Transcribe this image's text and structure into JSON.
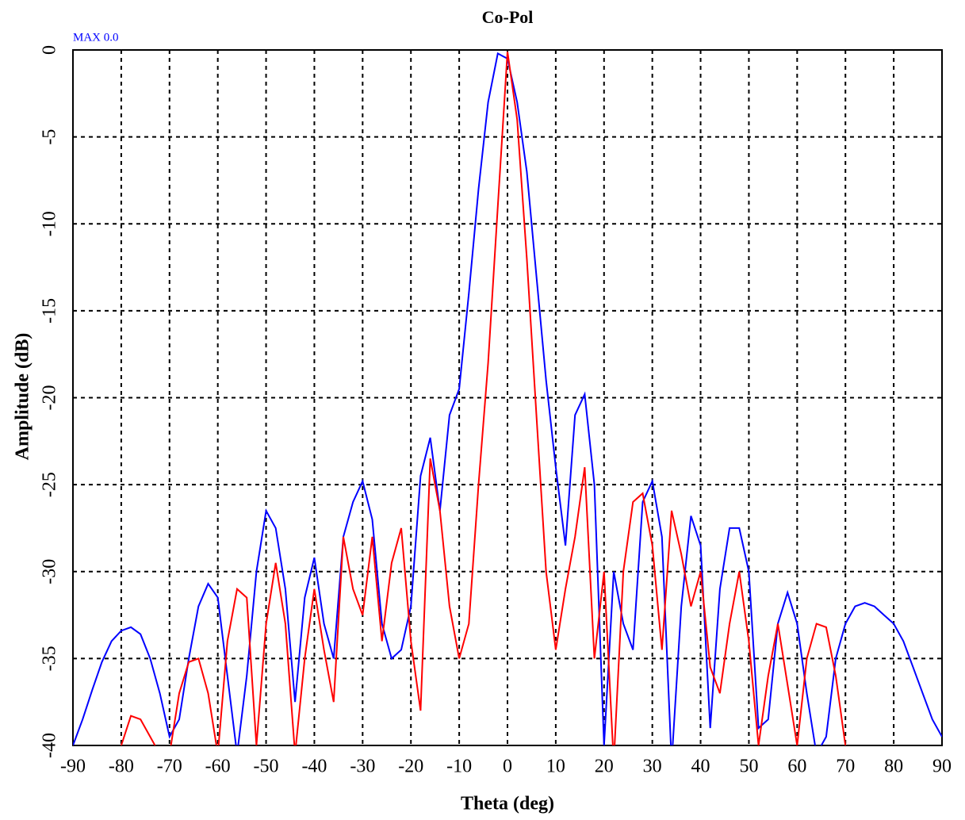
{
  "chart_data": {
    "type": "line",
    "title": "Co-Pol",
    "annotation": "MAX 0.0",
    "x_label": "Theta (deg)",
    "y_label": "Amplitude (dB)",
    "xlim": [
      -90,
      90
    ],
    "ylim": [
      -40,
      0
    ],
    "xticks": [
      -90,
      -80,
      -70,
      -60,
      -50,
      -40,
      -30,
      -20,
      -10,
      0,
      10,
      20,
      30,
      40,
      50,
      60,
      70,
      80,
      90
    ],
    "yticks": [
      0,
      -5,
      -10,
      -15,
      -20,
      -25,
      -30,
      -35,
      -40
    ],
    "grid": true,
    "x": [
      -90,
      -88,
      -86,
      -84,
      -82,
      -80,
      -78,
      -76,
      -74,
      -72,
      -70,
      -68,
      -66,
      -64,
      -62,
      -60,
      -58,
      -56,
      -54,
      -52,
      -50,
      -48,
      -46,
      -44,
      -42,
      -40,
      -38,
      -36,
      -34,
      -32,
      -30,
      -28,
      -26,
      -24,
      -22,
      -20,
      -18,
      -16,
      -14,
      -12,
      -10,
      -8,
      -6,
      -4,
      -2,
      0,
      2,
      4,
      6,
      8,
      10,
      12,
      14,
      16,
      18,
      20,
      22,
      24,
      26,
      28,
      30,
      32,
      34,
      36,
      38,
      40,
      42,
      44,
      46,
      48,
      50,
      52,
      54,
      56,
      58,
      60,
      62,
      64,
      66,
      68,
      70,
      72,
      74,
      76,
      78,
      80,
      82,
      84,
      86,
      88,
      90
    ],
    "series": [
      {
        "color": "#0000ff",
        "values": [
          -40,
          -38.5,
          -36.8,
          -35.2,
          -34,
          -33.4,
          -33.2,
          -33.6,
          -35,
          -37,
          -39.5,
          -38.5,
          -35,
          -32,
          -30.7,
          -31.5,
          -36,
          -40.5,
          -36,
          -30,
          -26.5,
          -27.5,
          -31,
          -37.5,
          -31.5,
          -29.2,
          -33,
          -35,
          -28,
          -26,
          -24.8,
          -27,
          -33,
          -35,
          -34.5,
          -32,
          -24.5,
          -22.3,
          -26.5,
          -21,
          -19.5,
          -14,
          -8,
          -3,
          -0.2,
          -0.5,
          -3,
          -7,
          -13,
          -19,
          -24,
          -28.5,
          -21,
          -19.8,
          -25,
          -40,
          -30,
          -33,
          -34.5,
          -26,
          -24.8,
          -28,
          -41,
          -32,
          -26.8,
          -28.5,
          -39,
          -31,
          -27.5,
          -27.5,
          -30,
          -39,
          -38.5,
          -33,
          -31.2,
          -33,
          -37,
          -40.5,
          -39.5,
          -35,
          -33,
          -32,
          -31.8,
          -32,
          -32.5,
          -33,
          -34,
          -35.5,
          -37,
          -38.5,
          -39.5
        ]
      },
      {
        "color": "#ff0000",
        "values": [
          null,
          null,
          null,
          null,
          null,
          -40,
          -38.3,
          -38.5,
          -39.5,
          -40.5,
          -40.5,
          -37,
          -35.2,
          -35,
          -37,
          -40.5,
          -34,
          -31,
          -31.5,
          -40,
          -33,
          -29.5,
          -33,
          -40.5,
          -35,
          -31,
          -34.5,
          -37.5,
          -28,
          -31,
          -32.5,
          -28,
          -34,
          -29.5,
          -27.5,
          -34,
          -38,
          -23.5,
          -26.5,
          -32,
          -35,
          -33,
          -25,
          -18,
          -9,
          -0.1,
          -4,
          -12,
          -21,
          -30,
          -34.5,
          -31,
          -28,
          -24,
          -35,
          -30,
          -41,
          -30,
          -26,
          -25.5,
          -28.5,
          -34.5,
          -26.5,
          -29,
          -32,
          -30,
          -35.5,
          -37,
          -33,
          -30,
          -34,
          -40,
          -36,
          -33,
          -36.5,
          -40,
          -35,
          -33,
          -33.2,
          -36,
          -40,
          null,
          null,
          null,
          null,
          null,
          null,
          null,
          null,
          null,
          null
        ]
      }
    ]
  }
}
